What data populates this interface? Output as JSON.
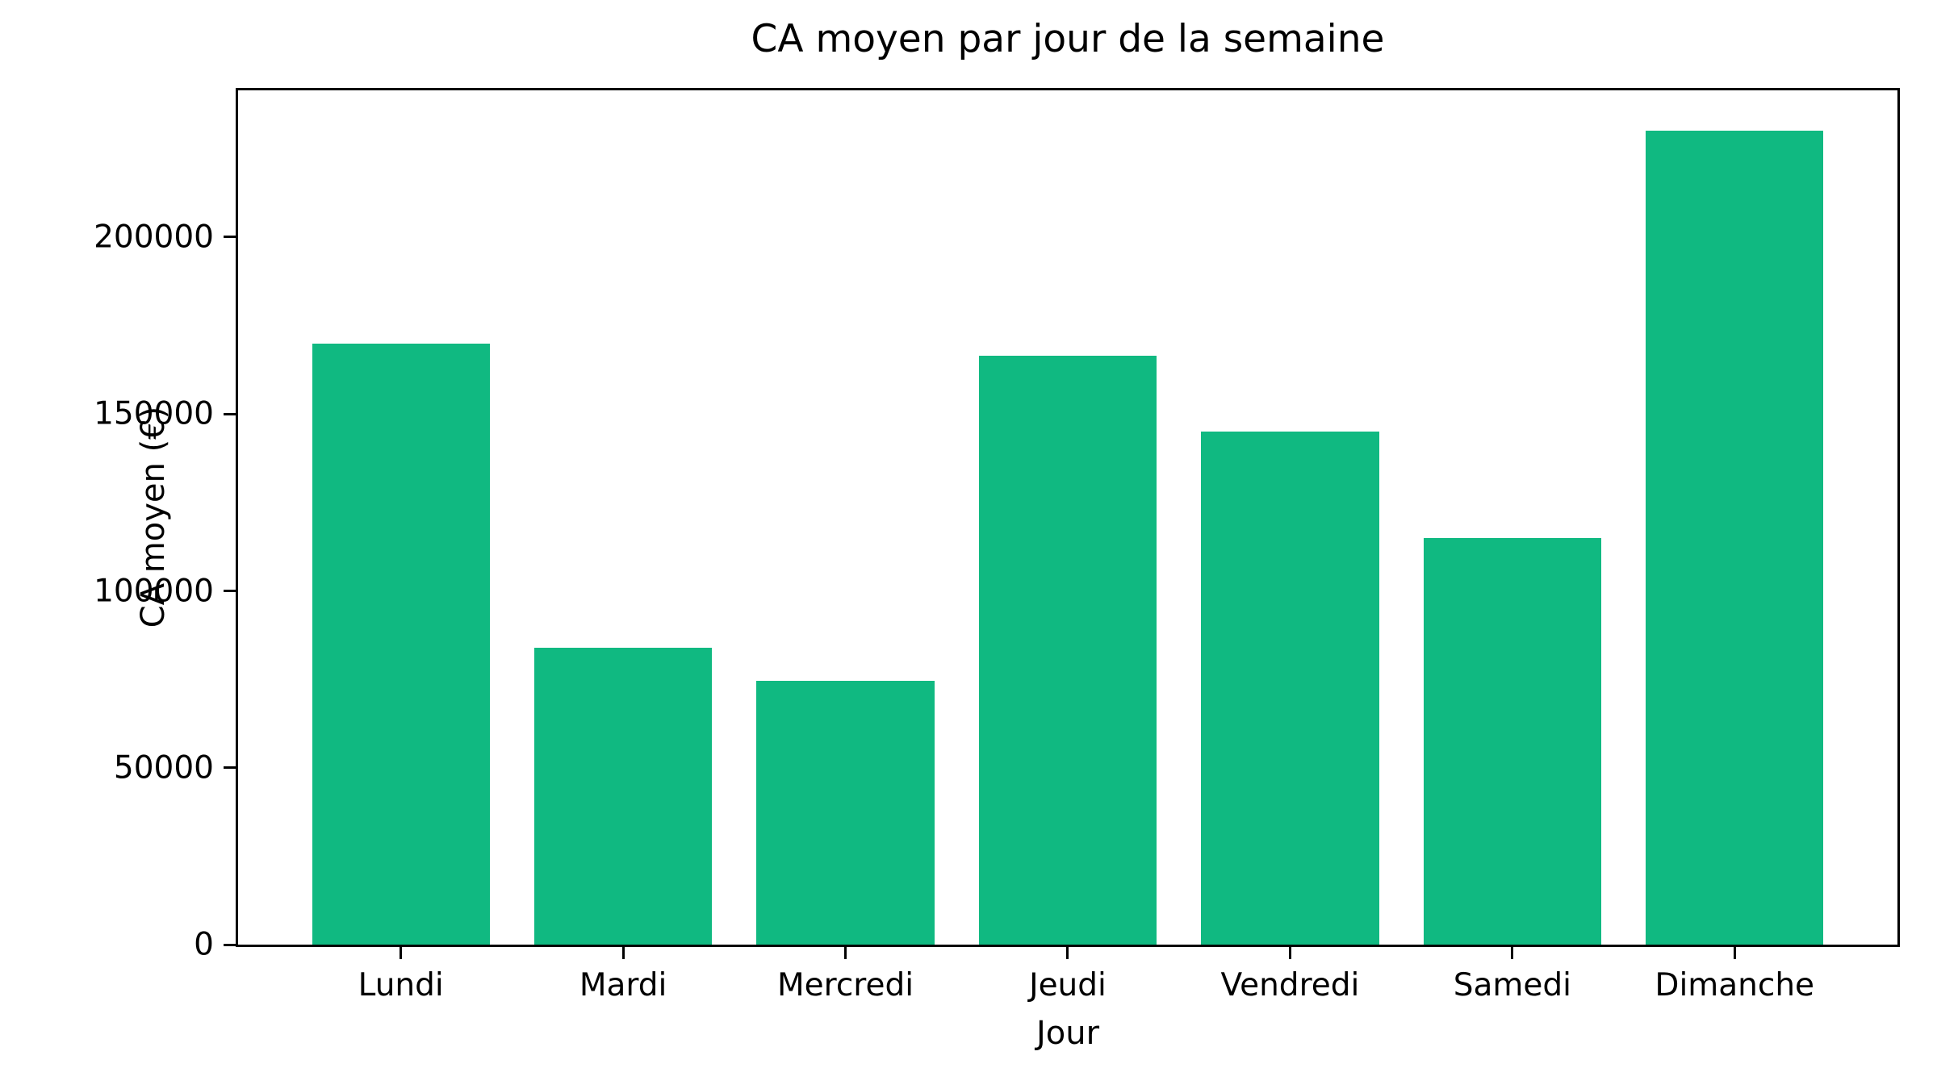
{
  "chart_data": {
    "type": "bar",
    "title": "CA moyen par jour de la semaine",
    "xlabel": "Jour",
    "ylabel": "CA moyen (€)",
    "categories": [
      "Lundi",
      "Mardi",
      "Mercredi",
      "Jeudi",
      "Vendredi",
      "Samedi",
      "Dimanche"
    ],
    "values": [
      170000,
      84000,
      74500,
      166500,
      145000,
      115000,
      230000
    ],
    "yticks": [
      0,
      50000,
      100000,
      150000,
      200000
    ],
    "ylim": [
      0,
      241500
    ],
    "bar_color": "#10b981",
    "background_color": "#ffffff",
    "text_color": "#000000",
    "grid": false,
    "legend": "none"
  }
}
